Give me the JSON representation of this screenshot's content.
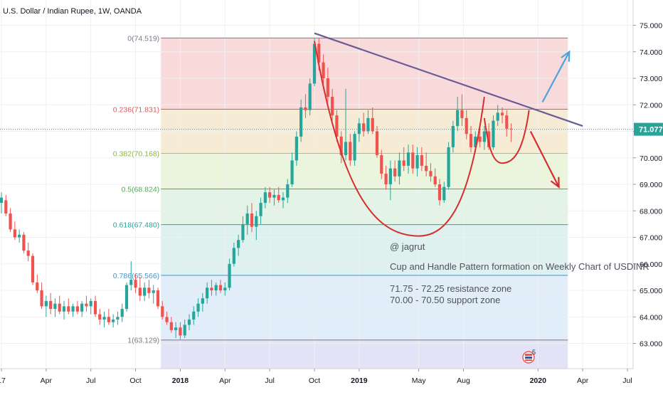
{
  "header": {
    "title": "U.S. Dollar / Indian Rupee, 1W, OANDA"
  },
  "chart_data": {
    "type": "candlestick",
    "title": "U.S. Dollar / Indian Rupee, 1W, OANDA",
    "ylim": [
      62.2,
      75.5
    ],
    "grid": true,
    "x_axis": {
      "ticks": [
        {
          "label": "17",
          "t": 0.0
        },
        {
          "label": "Apr",
          "t": 3.0
        },
        {
          "label": "Jul",
          "t": 6.0
        },
        {
          "label": "Oct",
          "t": 9.0
        },
        {
          "label": "2018",
          "t": 12.0
        },
        {
          "label": "Apr",
          "t": 15.0
        },
        {
          "label": "Jul",
          "t": 18.0
        },
        {
          "label": "Oct",
          "t": 21.0
        },
        {
          "label": "2019",
          "t": 24.0
        },
        {
          "label": "May",
          "t": 28.0
        },
        {
          "label": "Aug",
          "t": 31.0
        },
        {
          "label": "2020",
          "t": 36.0
        },
        {
          "label": "Apr",
          "t": 39.0
        },
        {
          "label": "Jul",
          "t": 42.0
        }
      ]
    },
    "y_axis": {
      "ticks": [
        "63.000",
        "64.000",
        "65.000",
        "66.000",
        "67.000",
        "68.000",
        "69.000",
        "70.000",
        "71.000",
        "72.000",
        "73.000",
        "74.000",
        "75.000"
      ],
      "values": [
        63,
        64,
        65,
        66,
        67,
        68,
        69,
        70,
        71,
        72,
        73,
        74,
        75
      ]
    },
    "current_price": {
      "value": 71.077,
      "label": "71.077",
      "color": "#26a69a"
    },
    "fibonacci": {
      "t_start": 10.7,
      "t_end": 38.0,
      "levels": [
        {
          "label": "0(74.519)",
          "value": 74.519,
          "line_color": "#787b86",
          "text_color": "#787b86",
          "fill": "#f8dada"
        },
        {
          "label": "0.236(71.831)",
          "value": 71.831,
          "line_color": "#e05a5a",
          "text_color": "#e05a5a",
          "fill": "#f6ecd5"
        },
        {
          "label": "0.382(70.168)",
          "value": 70.168,
          "line_color": "#a7c957",
          "text_color": "#8fb341",
          "fill": "#eaf5dc"
        },
        {
          "label": "0.5(68.824)",
          "value": 68.824,
          "line_color": "#4caf50",
          "text_color": "#4caf50",
          "fill": "#e3f3e5"
        },
        {
          "label": "0.618(67.480)",
          "value": 67.48,
          "line_color": "#26a69a",
          "text_color": "#26a69a",
          "fill": "#dff1ef"
        },
        {
          "label": "0.786(65.566)",
          "value": 65.566,
          "line_color": "#4a90c6",
          "text_color": "#4a90c6",
          "fill": "#e1edf8"
        },
        {
          "label": "1(63.129)",
          "value": 63.129,
          "line_color": "#787b86",
          "text_color": "#787b86",
          "fill": "#ececf4"
        }
      ],
      "below_fill": "#e4e2f6"
    },
    "candles": [
      {
        "t": 0.0,
        "o": 68.3,
        "h": 68.7,
        "l": 67.9,
        "c": 68.5
      },
      {
        "t": 0.3,
        "o": 68.4,
        "h": 68.6,
        "l": 67.8,
        "c": 67.9
      },
      {
        "t": 0.6,
        "o": 67.9,
        "h": 68.1,
        "l": 67.2,
        "c": 67.3
      },
      {
        "t": 0.9,
        "o": 67.3,
        "h": 67.6,
        "l": 66.9,
        "c": 67.0
      },
      {
        "t": 1.2,
        "o": 67.0,
        "h": 67.3,
        "l": 66.8,
        "c": 67.1
      },
      {
        "t": 1.5,
        "o": 67.1,
        "h": 67.2,
        "l": 66.4,
        "c": 66.5
      },
      {
        "t": 1.8,
        "o": 66.5,
        "h": 66.8,
        "l": 66.1,
        "c": 66.3
      },
      {
        "t": 2.1,
        "o": 66.3,
        "h": 66.4,
        "l": 65.2,
        "c": 65.3
      },
      {
        "t": 2.4,
        "o": 65.3,
        "h": 65.6,
        "l": 64.9,
        "c": 65.0
      },
      {
        "t": 2.7,
        "o": 65.0,
        "h": 65.3,
        "l": 64.3,
        "c": 64.4
      },
      {
        "t": 3.0,
        "o": 64.4,
        "h": 64.8,
        "l": 64.0,
        "c": 64.6
      },
      {
        "t": 3.3,
        "o": 64.6,
        "h": 64.9,
        "l": 64.1,
        "c": 64.3
      },
      {
        "t": 3.6,
        "o": 64.3,
        "h": 64.7,
        "l": 64.0,
        "c": 64.5
      },
      {
        "t": 3.9,
        "o": 64.5,
        "h": 64.8,
        "l": 64.1,
        "c": 64.2
      },
      {
        "t": 4.2,
        "o": 64.2,
        "h": 64.6,
        "l": 63.9,
        "c": 64.4
      },
      {
        "t": 4.5,
        "o": 64.4,
        "h": 64.7,
        "l": 64.1,
        "c": 64.2
      },
      {
        "t": 4.8,
        "o": 64.2,
        "h": 64.5,
        "l": 64.0,
        "c": 64.4
      },
      {
        "t": 5.1,
        "o": 64.4,
        "h": 64.6,
        "l": 64.1,
        "c": 64.2
      },
      {
        "t": 5.4,
        "o": 64.2,
        "h": 64.6,
        "l": 64.0,
        "c": 64.5
      },
      {
        "t": 5.7,
        "o": 64.5,
        "h": 64.8,
        "l": 64.2,
        "c": 64.4
      },
      {
        "t": 6.0,
        "o": 64.4,
        "h": 64.7,
        "l": 64.1,
        "c": 64.6
      },
      {
        "t": 6.3,
        "o": 64.6,
        "h": 64.8,
        "l": 64.0,
        "c": 64.1
      },
      {
        "t": 6.6,
        "o": 64.1,
        "h": 64.3,
        "l": 63.7,
        "c": 63.9
      },
      {
        "t": 6.9,
        "o": 63.9,
        "h": 64.2,
        "l": 63.6,
        "c": 64.0
      },
      {
        "t": 7.2,
        "o": 64.0,
        "h": 64.3,
        "l": 63.7,
        "c": 63.8
      },
      {
        "t": 7.5,
        "o": 63.8,
        "h": 64.1,
        "l": 63.6,
        "c": 63.9
      },
      {
        "t": 7.8,
        "o": 63.9,
        "h": 64.2,
        "l": 63.7,
        "c": 64.0
      },
      {
        "t": 8.1,
        "o": 64.0,
        "h": 64.5,
        "l": 63.8,
        "c": 64.3
      },
      {
        "t": 8.4,
        "o": 64.3,
        "h": 65.3,
        "l": 64.2,
        "c": 65.2
      },
      {
        "t": 8.7,
        "o": 65.2,
        "h": 66.1,
        "l": 65.0,
        "c": 65.4
      },
      {
        "t": 9.0,
        "o": 65.4,
        "h": 65.6,
        "l": 64.9,
        "c": 65.1
      },
      {
        "t": 9.3,
        "o": 65.1,
        "h": 65.5,
        "l": 64.6,
        "c": 64.8
      },
      {
        "t": 9.6,
        "o": 64.8,
        "h": 65.3,
        "l": 64.6,
        "c": 65.1
      },
      {
        "t": 9.9,
        "o": 65.1,
        "h": 65.4,
        "l": 64.7,
        "c": 64.9
      },
      {
        "t": 10.2,
        "o": 64.9,
        "h": 65.2,
        "l": 64.5,
        "c": 65.0
      },
      {
        "t": 10.5,
        "o": 65.0,
        "h": 65.1,
        "l": 64.3,
        "c": 64.4
      },
      {
        "t": 10.8,
        "o": 64.4,
        "h": 64.6,
        "l": 63.9,
        "c": 64.0
      },
      {
        "t": 11.1,
        "o": 64.0,
        "h": 64.2,
        "l": 63.7,
        "c": 63.8
      },
      {
        "t": 11.4,
        "o": 63.8,
        "h": 64.0,
        "l": 63.4,
        "c": 63.5
      },
      {
        "t": 11.7,
        "o": 63.5,
        "h": 63.8,
        "l": 63.2,
        "c": 63.6
      },
      {
        "t": 12.0,
        "o": 63.6,
        "h": 63.8,
        "l": 63.15,
        "c": 63.3
      },
      {
        "t": 12.3,
        "o": 63.3,
        "h": 63.9,
        "l": 63.2,
        "c": 63.7
      },
      {
        "t": 12.6,
        "o": 63.7,
        "h": 64.1,
        "l": 63.5,
        "c": 63.9
      },
      {
        "t": 12.9,
        "o": 63.9,
        "h": 64.4,
        "l": 63.7,
        "c": 64.2
      },
      {
        "t": 13.2,
        "o": 64.2,
        "h": 64.7,
        "l": 64.0,
        "c": 64.5
      },
      {
        "t": 13.5,
        "o": 64.5,
        "h": 64.9,
        "l": 64.2,
        "c": 64.7
      },
      {
        "t": 13.8,
        "o": 64.7,
        "h": 65.3,
        "l": 64.5,
        "c": 65.1
      },
      {
        "t": 14.1,
        "o": 65.1,
        "h": 65.4,
        "l": 64.8,
        "c": 65.0
      },
      {
        "t": 14.4,
        "o": 65.0,
        "h": 65.3,
        "l": 64.8,
        "c": 65.2
      },
      {
        "t": 14.7,
        "o": 65.2,
        "h": 65.4,
        "l": 64.9,
        "c": 65.0
      },
      {
        "t": 15.0,
        "o": 65.0,
        "h": 65.3,
        "l": 64.8,
        "c": 65.1
      },
      {
        "t": 15.3,
        "o": 65.1,
        "h": 66.2,
        "l": 65.0,
        "c": 66.0
      },
      {
        "t": 15.6,
        "o": 66.0,
        "h": 66.8,
        "l": 65.9,
        "c": 66.6
      },
      {
        "t": 15.9,
        "o": 66.6,
        "h": 67.1,
        "l": 66.3,
        "c": 66.9
      },
      {
        "t": 16.2,
        "o": 66.9,
        "h": 67.8,
        "l": 66.8,
        "c": 67.5
      },
      {
        "t": 16.5,
        "o": 67.5,
        "h": 68.2,
        "l": 67.1,
        "c": 67.9
      },
      {
        "t": 16.8,
        "o": 67.9,
        "h": 68.3,
        "l": 67.2,
        "c": 67.4
      },
      {
        "t": 17.1,
        "o": 67.4,
        "h": 68.0,
        "l": 66.9,
        "c": 67.8
      },
      {
        "t": 17.4,
        "o": 67.8,
        "h": 68.5,
        "l": 67.5,
        "c": 68.3
      },
      {
        "t": 17.7,
        "o": 68.3,
        "h": 68.9,
        "l": 68.1,
        "c": 68.7
      },
      {
        "t": 18.0,
        "o": 68.7,
        "h": 68.9,
        "l": 68.3,
        "c": 68.5
      },
      {
        "t": 18.3,
        "o": 68.5,
        "h": 68.8,
        "l": 68.2,
        "c": 68.6
      },
      {
        "t": 18.6,
        "o": 68.6,
        "h": 68.9,
        "l": 68.3,
        "c": 68.4
      },
      {
        "t": 18.9,
        "o": 68.4,
        "h": 68.7,
        "l": 68.1,
        "c": 68.5
      },
      {
        "t": 19.2,
        "o": 68.5,
        "h": 69.2,
        "l": 68.3,
        "c": 69.0
      },
      {
        "t": 19.5,
        "o": 69.0,
        "h": 70.2,
        "l": 68.9,
        "c": 69.9
      },
      {
        "t": 19.8,
        "o": 69.9,
        "h": 71.0,
        "l": 69.7,
        "c": 70.8
      },
      {
        "t": 20.1,
        "o": 70.8,
        "h": 72.2,
        "l": 70.6,
        "c": 71.9
      },
      {
        "t": 20.4,
        "o": 71.9,
        "h": 72.4,
        "l": 71.5,
        "c": 71.8
      },
      {
        "t": 20.7,
        "o": 71.8,
        "h": 73.0,
        "l": 71.6,
        "c": 72.8
      },
      {
        "t": 21.0,
        "o": 72.8,
        "h": 74.5,
        "l": 72.7,
        "c": 74.3
      },
      {
        "t": 21.3,
        "o": 74.3,
        "h": 74.5,
        "l": 73.3,
        "c": 73.6
      },
      {
        "t": 21.6,
        "o": 73.6,
        "h": 73.9,
        "l": 72.8,
        "c": 73.0
      },
      {
        "t": 21.9,
        "o": 73.0,
        "h": 73.4,
        "l": 72.1,
        "c": 72.3
      },
      {
        "t": 22.2,
        "o": 72.3,
        "h": 72.6,
        "l": 71.4,
        "c": 71.6
      },
      {
        "t": 22.5,
        "o": 71.6,
        "h": 71.8,
        "l": 70.6,
        "c": 70.8
      },
      {
        "t": 22.8,
        "o": 70.8,
        "h": 71.0,
        "l": 69.8,
        "c": 70.1
      },
      {
        "t": 23.1,
        "o": 70.1,
        "h": 72.6,
        "l": 69.9,
        "c": 70.6
      },
      {
        "t": 23.4,
        "o": 70.6,
        "h": 70.9,
        "l": 69.7,
        "c": 69.9
      },
      {
        "t": 23.7,
        "o": 69.9,
        "h": 71.0,
        "l": 69.7,
        "c": 70.9
      },
      {
        "t": 24.0,
        "o": 70.9,
        "h": 71.5,
        "l": 70.6,
        "c": 71.3
      },
      {
        "t": 24.3,
        "o": 71.3,
        "h": 71.7,
        "l": 70.8,
        "c": 71.0
      },
      {
        "t": 24.6,
        "o": 71.0,
        "h": 71.8,
        "l": 70.9,
        "c": 71.5
      },
      {
        "t": 24.9,
        "o": 71.5,
        "h": 71.9,
        "l": 70.9,
        "c": 71.0
      },
      {
        "t": 25.2,
        "o": 71.0,
        "h": 71.2,
        "l": 70.0,
        "c": 70.1
      },
      {
        "t": 25.5,
        "o": 70.1,
        "h": 70.3,
        "l": 69.2,
        "c": 69.4
      },
      {
        "t": 25.8,
        "o": 69.4,
        "h": 69.7,
        "l": 68.8,
        "c": 69.0
      },
      {
        "t": 26.1,
        "o": 69.0,
        "h": 69.9,
        "l": 68.4,
        "c": 69.6
      },
      {
        "t": 26.4,
        "o": 69.6,
        "h": 69.9,
        "l": 69.1,
        "c": 69.3
      },
      {
        "t": 26.7,
        "o": 69.3,
        "h": 70.2,
        "l": 69.0,
        "c": 69.9
      },
      {
        "t": 27.0,
        "o": 69.9,
        "h": 70.4,
        "l": 69.5,
        "c": 69.7
      },
      {
        "t": 27.3,
        "o": 69.7,
        "h": 70.5,
        "l": 69.4,
        "c": 70.2
      },
      {
        "t": 27.6,
        "o": 70.2,
        "h": 70.5,
        "l": 69.4,
        "c": 69.6
      },
      {
        "t": 27.9,
        "o": 69.6,
        "h": 70.4,
        "l": 69.3,
        "c": 70.1
      },
      {
        "t": 28.2,
        "o": 70.1,
        "h": 70.4,
        "l": 69.5,
        "c": 69.7
      },
      {
        "t": 28.5,
        "o": 69.7,
        "h": 70.2,
        "l": 69.3,
        "c": 69.5
      },
      {
        "t": 28.8,
        "o": 69.5,
        "h": 69.8,
        "l": 69.1,
        "c": 69.3
      },
      {
        "t": 29.1,
        "o": 69.3,
        "h": 69.6,
        "l": 68.9,
        "c": 69.0
      },
      {
        "t": 29.4,
        "o": 69.0,
        "h": 69.2,
        "l": 68.2,
        "c": 68.4
      },
      {
        "t": 29.7,
        "o": 68.4,
        "h": 69.1,
        "l": 68.3,
        "c": 68.9
      },
      {
        "t": 30.0,
        "o": 68.9,
        "h": 70.6,
        "l": 68.8,
        "c": 70.4
      },
      {
        "t": 30.3,
        "o": 70.4,
        "h": 71.4,
        "l": 70.2,
        "c": 71.2
      },
      {
        "t": 30.6,
        "o": 71.2,
        "h": 72.3,
        "l": 71.0,
        "c": 71.8
      },
      {
        "t": 30.9,
        "o": 71.8,
        "h": 72.4,
        "l": 71.2,
        "c": 71.5
      },
      {
        "t": 31.2,
        "o": 71.5,
        "h": 71.8,
        "l": 70.7,
        "c": 70.9
      },
      {
        "t": 31.5,
        "o": 70.9,
        "h": 71.2,
        "l": 70.2,
        "c": 70.4
      },
      {
        "t": 31.8,
        "o": 70.4,
        "h": 71.0,
        "l": 70.2,
        "c": 70.8
      },
      {
        "t": 32.1,
        "o": 70.8,
        "h": 71.1,
        "l": 70.4,
        "c": 70.6
      },
      {
        "t": 32.4,
        "o": 70.6,
        "h": 71.2,
        "l": 70.3,
        "c": 71.0
      },
      {
        "t": 32.7,
        "o": 71.0,
        "h": 71.3,
        "l": 70.3,
        "c": 70.4
      },
      {
        "t": 33.0,
        "o": 70.4,
        "h": 71.6,
        "l": 70.3,
        "c": 71.4
      },
      {
        "t": 33.3,
        "o": 71.4,
        "h": 72.0,
        "l": 71.2,
        "c": 71.7
      },
      {
        "t": 33.6,
        "o": 71.7,
        "h": 71.9,
        "l": 71.3,
        "c": 71.6
      },
      {
        "t": 33.9,
        "o": 71.6,
        "h": 71.8,
        "l": 70.8,
        "c": 71.1
      },
      {
        "t": 34.2,
        "o": 71.1,
        "h": 71.3,
        "l": 70.6,
        "c": 71.08
      }
    ],
    "annotations": {
      "trendline": {
        "t1": 21.0,
        "v1": 74.7,
        "t2": 39.0,
        "v2": 71.2,
        "color": "#6b5b95"
      },
      "cup": {
        "t_left": 21.0,
        "v_left": 74.4,
        "t_bottom": 28.0,
        "v_bottom": 67.05,
        "t_right": 32.4,
        "v_right": 72.3,
        "color": "#d32f2f"
      },
      "handle": {
        "t_left": 32.4,
        "v_left": 71.5,
        "t_bottom": 33.6,
        "v_bottom": 69.8,
        "t_right": 35.4,
        "v_right": 71.8,
        "color": "#d32f2f"
      },
      "up_arrow": {
        "t1": 36.3,
        "v1": 72.1,
        "t2": 38.1,
        "v2": 74.0,
        "color": "#4aa3df"
      },
      "down_arrow": {
        "t1": 35.5,
        "v1": 71.0,
        "t2": 37.4,
        "v2": 68.9,
        "color": "#d32f2f"
      }
    },
    "notes": [
      "@ jagrut",
      "Cup and Handle Pattern formation on Weekly Chart of USDINR",
      "71.75 - 72.25 resistance zone",
      "70.00 - 70.50 support zone"
    ],
    "colors": {
      "up": "#26a69a",
      "down": "#ef5350"
    },
    "badge": {
      "label": "5"
    }
  }
}
